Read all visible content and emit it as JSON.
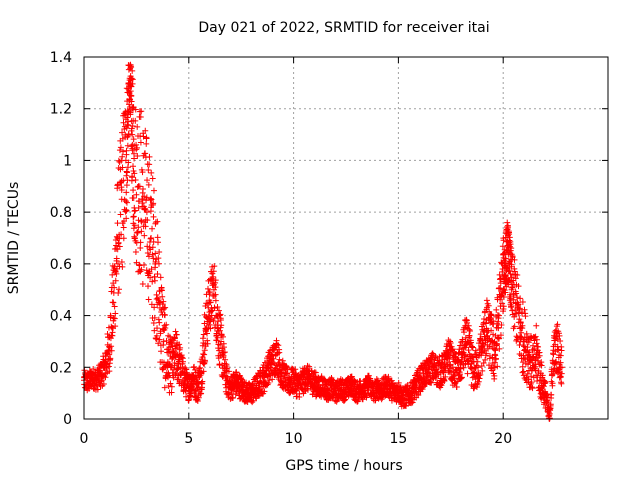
{
  "chart_data": {
    "type": "scatter",
    "title": "Day 021 of 2022, SRMTID for receiver itai",
    "xlabel": "GPS time / hours",
    "ylabel": "SRMTID / TECUs",
    "xlim": [
      0,
      25
    ],
    "ylim": [
      0,
      1.4
    ],
    "xticks": [
      0,
      5,
      10,
      15,
      20
    ],
    "xtick_labels": [
      "0",
      "5",
      "10",
      "15",
      "20"
    ],
    "yticks": [
      0,
      0.2,
      0.4,
      0.6,
      0.8,
      1,
      1.2,
      1.4
    ],
    "ytick_labels": [
      "0",
      "0.2",
      "0.4",
      "0.6",
      "0.8",
      "1",
      "1.2",
      "1.4"
    ],
    "grid": true,
    "marker": "+",
    "color": "#ff0000",
    "series": [
      {
        "name": "SRMTID",
        "x": [
          0.0,
          0.2,
          0.4,
          0.6,
          0.8,
          1.0,
          1.2,
          1.4,
          1.6,
          1.8,
          2.0,
          2.1,
          2.2,
          2.3,
          2.4,
          2.6,
          2.8,
          3.0,
          3.2,
          3.4,
          3.6,
          3.8,
          4.0,
          4.2,
          4.4,
          4.6,
          4.8,
          5.0,
          5.2,
          5.4,
          5.6,
          5.8,
          6.0,
          6.2,
          6.4,
          6.6,
          6.8,
          7.0,
          7.2,
          7.4,
          7.6,
          7.8,
          8.0,
          8.2,
          8.4,
          8.6,
          8.8,
          9.0,
          9.2,
          9.4,
          9.6,
          9.8,
          10.0,
          10.2,
          10.4,
          10.6,
          10.8,
          11.0,
          11.2,
          11.4,
          11.6,
          11.8,
          12.0,
          12.2,
          12.4,
          12.6,
          12.8,
          13.0,
          13.2,
          13.4,
          13.6,
          13.8,
          14.0,
          14.2,
          14.4,
          14.6,
          14.8,
          15.0,
          15.2,
          15.4,
          15.6,
          15.8,
          16.0,
          16.2,
          16.4,
          16.6,
          16.8,
          17.0,
          17.2,
          17.4,
          17.6,
          17.8,
          18.0,
          18.2,
          18.4,
          18.6,
          18.8,
          19.0,
          19.2,
          19.4,
          19.6,
          19.8,
          20.0,
          20.1,
          20.2,
          20.3,
          20.4,
          20.6,
          20.8,
          21.0,
          21.2,
          21.4,
          21.6,
          21.8,
          22.0,
          22.2,
          22.4,
          22.6,
          22.8
        ],
        "y": [
          0.15,
          0.14,
          0.16,
          0.15,
          0.17,
          0.2,
          0.28,
          0.45,
          0.7,
          0.85,
          1.0,
          1.15,
          1.3,
          1.1,
          0.95,
          0.9,
          0.85,
          0.8,
          0.7,
          0.6,
          0.45,
          0.3,
          0.22,
          0.2,
          0.25,
          0.2,
          0.15,
          0.12,
          0.16,
          0.12,
          0.18,
          0.35,
          0.45,
          0.5,
          0.35,
          0.25,
          0.15,
          0.12,
          0.14,
          0.13,
          0.11,
          0.1,
          0.1,
          0.12,
          0.14,
          0.16,
          0.2,
          0.22,
          0.25,
          0.18,
          0.16,
          0.14,
          0.15,
          0.13,
          0.14,
          0.16,
          0.15,
          0.14,
          0.12,
          0.13,
          0.11,
          0.12,
          0.1,
          0.12,
          0.11,
          0.12,
          0.13,
          0.1,
          0.12,
          0.11,
          0.14,
          0.1,
          0.12,
          0.11,
          0.13,
          0.12,
          0.1,
          0.11,
          0.08,
          0.09,
          0.1,
          0.12,
          0.15,
          0.17,
          0.18,
          0.2,
          0.19,
          0.18,
          0.2,
          0.25,
          0.2,
          0.18,
          0.22,
          0.3,
          0.25,
          0.18,
          0.2,
          0.28,
          0.35,
          0.3,
          0.25,
          0.4,
          0.55,
          0.6,
          0.65,
          0.6,
          0.5,
          0.45,
          0.35,
          0.3,
          0.25,
          0.2,
          0.25,
          0.15,
          0.1,
          0.0,
          0.25,
          0.28,
          0.2
        ],
        "spread": [
          0.04,
          0.04,
          0.04,
          0.04,
          0.05,
          0.06,
          0.1,
          0.18,
          0.25,
          0.3,
          0.3,
          0.22,
          0.08,
          0.25,
          0.3,
          0.35,
          0.35,
          0.3,
          0.3,
          0.28,
          0.22,
          0.18,
          0.12,
          0.1,
          0.1,
          0.08,
          0.06,
          0.05,
          0.06,
          0.06,
          0.08,
          0.12,
          0.12,
          0.12,
          0.12,
          0.1,
          0.06,
          0.05,
          0.05,
          0.05,
          0.04,
          0.04,
          0.04,
          0.05,
          0.05,
          0.06,
          0.06,
          0.07,
          0.07,
          0.06,
          0.05,
          0.05,
          0.05,
          0.05,
          0.05,
          0.05,
          0.05,
          0.05,
          0.04,
          0.04,
          0.04,
          0.04,
          0.04,
          0.04,
          0.04,
          0.04,
          0.04,
          0.04,
          0.04,
          0.04,
          0.04,
          0.04,
          0.04,
          0.04,
          0.04,
          0.04,
          0.04,
          0.04,
          0.04,
          0.04,
          0.04,
          0.05,
          0.05,
          0.05,
          0.05,
          0.06,
          0.06,
          0.06,
          0.06,
          0.07,
          0.07,
          0.07,
          0.08,
          0.1,
          0.1,
          0.08,
          0.08,
          0.1,
          0.12,
          0.12,
          0.12,
          0.15,
          0.15,
          0.12,
          0.12,
          0.12,
          0.15,
          0.15,
          0.15,
          0.14,
          0.12,
          0.1,
          0.12,
          0.08,
          0.05,
          0.03,
          0.08,
          0.1,
          0.08
        ]
      }
    ]
  }
}
